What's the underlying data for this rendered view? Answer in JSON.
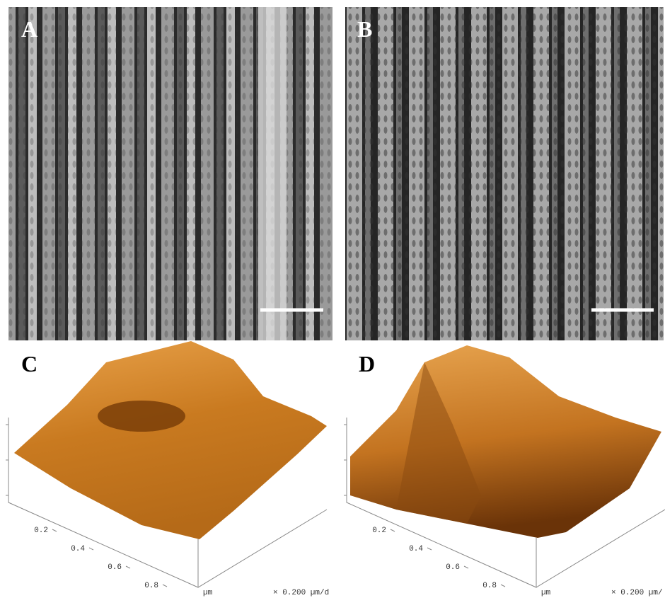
{
  "panels": [
    {
      "label": "A"
    },
    {
      "label": "B"
    },
    {
      "label": "C",
      "axis": {
        "ticks": [
          "0.2",
          "0.4",
          "0.6",
          "0.8"
        ],
        "unit": "µm",
        "scale": "× 0.200 µm/d"
      }
    },
    {
      "label": "D",
      "axis": {
        "ticks": [
          "0.2",
          "0.4",
          "0.6",
          "0.8"
        ],
        "unit": "µm",
        "scale": "× 0.200 µm/"
      }
    }
  ]
}
